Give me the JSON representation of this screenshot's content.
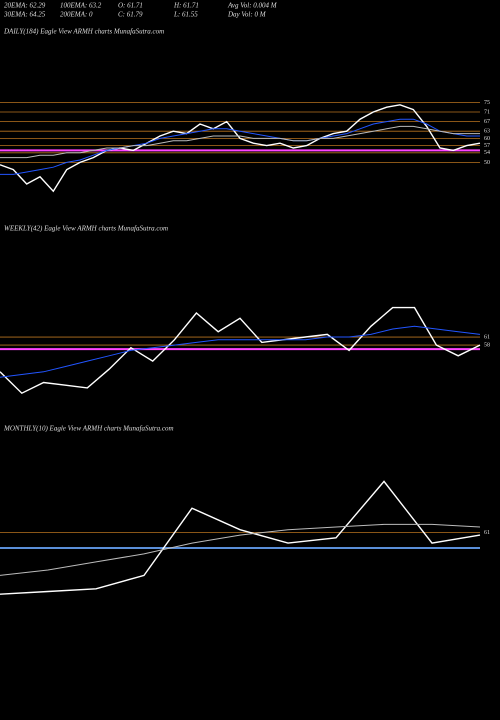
{
  "header": {
    "items": [
      "20EMA: 62.29",
      "100EMA: 63.2",
      "O: 61.71",
      "H: 61.71",
      "Avg Vol: 0.004 M",
      "30EMA: 64.25",
      "200EMA: 0",
      "C: 61.79",
      "L: 61.55",
      "Day Vol: 0  M"
    ]
  },
  "chart_data": [
    {
      "type": "line",
      "title": "DAILY(184) Eagle  View  ARMH charts MunafaSutra.com",
      "categories": [
        null,
        null,
        null,
        null,
        null,
        null,
        null,
        null,
        null,
        null,
        null,
        null,
        null,
        null,
        null,
        null,
        null,
        null,
        null,
        null,
        null,
        null,
        null,
        null,
        null,
        null,
        null,
        null,
        null,
        null,
        null,
        null,
        null,
        null,
        null,
        null,
        null
      ],
      "series": [
        {
          "color": "#ffffff",
          "values": [
            49,
            47,
            41,
            44,
            38,
            47,
            50,
            52,
            55,
            56,
            55,
            58,
            61,
            63,
            62,
            66,
            64,
            67,
            60,
            58,
            57,
            58,
            56,
            57,
            60,
            62,
            63,
            68,
            71,
            73,
            74,
            72,
            65,
            56,
            55,
            57,
            58
          ]
        },
        {
          "color": "#2255ff",
          "values": [
            45,
            45,
            46,
            47,
            48,
            50,
            51,
            53,
            55,
            56,
            57,
            58,
            60,
            61,
            62,
            63,
            64,
            64,
            63,
            62,
            61,
            60,
            59,
            59,
            60,
            61,
            62,
            64,
            66,
            67,
            68,
            68,
            66,
            63,
            62,
            61,
            61
          ]
        },
        {
          "color": "#bbbbbb",
          "values": [
            52,
            52,
            52,
            53,
            53,
            54,
            54,
            55,
            56,
            56,
            57,
            57,
            58,
            59,
            59,
            60,
            61,
            61,
            61,
            60,
            60,
            60,
            59,
            59,
            60,
            60,
            61,
            62,
            63,
            64,
            65,
            65,
            64,
            63,
            62,
            62,
            62
          ]
        }
      ],
      "reference_line": {
        "value": 55,
        "color": "#ff44ff"
      },
      "ylim": [
        26,
        101
      ],
      "yticks": [
        50,
        54,
        57,
        60,
        63,
        67,
        71,
        75
      ],
      "grid_color": "#b8731f"
    },
    {
      "type": "line",
      "title": "WEEKLY(42) Eagle  View  ARMH charts MunafaSutra.com",
      "categories": [
        null,
        null,
        null,
        null,
        null,
        null,
        null,
        null,
        null,
        null,
        null,
        null,
        null,
        null,
        null,
        null,
        null,
        null,
        null,
        null,
        null,
        null,
        null
      ],
      "series": [
        {
          "color": "#ffffff",
          "values": [
            48,
            40,
            44,
            43,
            42,
            49,
            57,
            52,
            60,
            70,
            63,
            68,
            59,
            60,
            61,
            62,
            56,
            65,
            72,
            72,
            58,
            54,
            58
          ]
        },
        {
          "color": "#2255ff",
          "values": [
            46,
            47,
            48,
            50,
            52,
            54,
            56,
            57,
            58,
            59,
            60,
            60,
            60,
            60,
            60,
            61,
            61,
            62,
            64,
            65,
            64,
            63,
            62
          ]
        }
      ],
      "reference_line": {
        "value": 56.5,
        "color": "#ff44ff"
      },
      "ylim": [
        30,
        101
      ],
      "yticks": [
        58,
        61
      ],
      "grid_color": "#b8731f"
    },
    {
      "type": "line",
      "title": "MONTHLY(10) Eagle  View  ARMH charts MunafaSutra.com",
      "categories": [
        null,
        null,
        null,
        null,
        null,
        null,
        null,
        null,
        null,
        null,
        null
      ],
      "series": [
        {
          "color": "#ffffff",
          "values": [
            38,
            39,
            40,
            45,
            70,
            62,
            57,
            59,
            80,
            57,
            60
          ]
        },
        {
          "color": "#bbbbbb",
          "values": [
            45,
            47,
            50,
            53,
            57,
            60,
            62,
            63,
            64,
            64,
            63
          ]
        }
      ],
      "reference_line": {
        "value": 55.2,
        "color": "#5b8fd9"
      },
      "ylim": [
        -7,
        101
      ],
      "yticks": [
        61
      ],
      "grid_color": "#b8731f"
    }
  ]
}
